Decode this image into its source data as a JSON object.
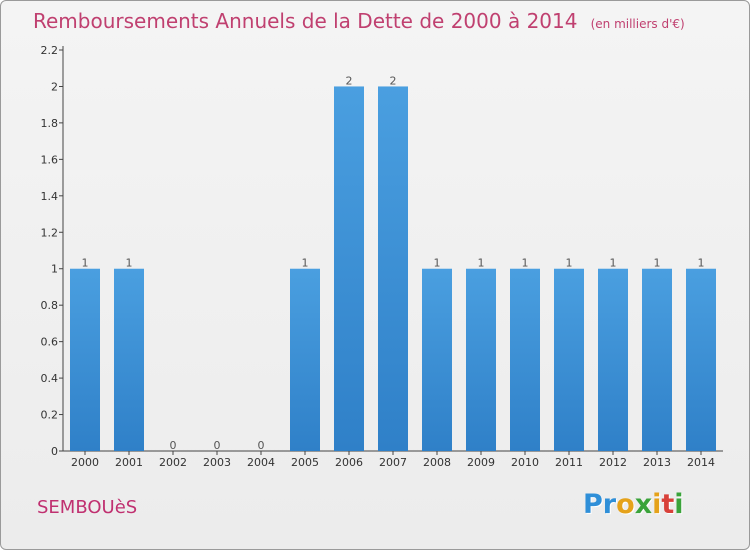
{
  "header": {
    "title": "Remboursements Annuels de la Dette de 2000 à 2014",
    "subtitle": "(en milliers d'€)"
  },
  "footer": {
    "commune": "SEMBOUèS"
  },
  "logo": {
    "letters": [
      {
        "ch": "P",
        "color": "#2f8fd8"
      },
      {
        "ch": "r",
        "color": "#2f8fd8"
      },
      {
        "ch": "o",
        "color": "#e5a21a"
      },
      {
        "ch": "x",
        "color": "#3aa33a"
      },
      {
        "ch": "i",
        "color": "#e5a21a"
      },
      {
        "ch": "t",
        "color": "#d8413a"
      },
      {
        "ch": "i",
        "color": "#3aa33a"
      }
    ]
  },
  "chart_data": {
    "type": "bar",
    "categories": [
      "2000",
      "2001",
      "2002",
      "2003",
      "2004",
      "2005",
      "2006",
      "2007",
      "2008",
      "2009",
      "2010",
      "2011",
      "2012",
      "2013",
      "2014"
    ],
    "values": [
      1,
      1,
      0,
      0,
      0,
      1,
      2,
      2,
      1,
      1,
      1,
      1,
      1,
      1,
      1
    ],
    "data_labels": [
      "1",
      "1",
      "0",
      "0",
      "0",
      "1",
      "2",
      "2",
      "1",
      "1",
      "1",
      "1",
      "1",
      "1",
      "1"
    ],
    "yticks": [
      0,
      0.2,
      0.4,
      0.6,
      0.8,
      1,
      1.2,
      1.4,
      1.6,
      1.8,
      2,
      2.2
    ],
    "ytick_labels": [
      "0",
      "0.2",
      "0.4",
      "0.6",
      "0.8",
      "1",
      "1.2",
      "1.4",
      "1.6",
      "1.8",
      "2",
      "2.2"
    ],
    "ylim": [
      0,
      2.2
    ],
    "grid": false,
    "bar_color": "#4a9fe0",
    "bar_color_dark": "#2f80c8"
  }
}
